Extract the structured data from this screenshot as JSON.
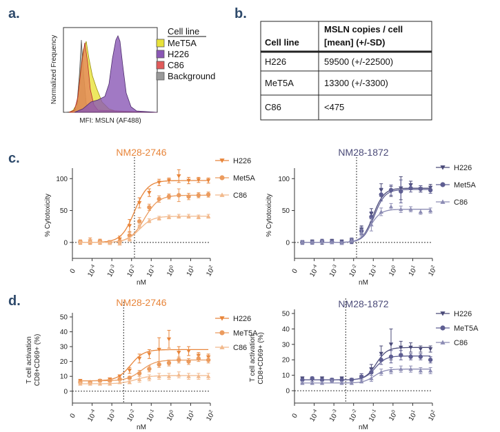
{
  "panel_labels": {
    "a": "a.",
    "b": "b.",
    "c": "c.",
    "d": "d."
  },
  "histogram": {
    "ylabel": "Normalized Frequency",
    "xlabel": "MFI: MSLN (AF488)",
    "legend_title": "Cell line",
    "legend": [
      {
        "name": "MeT5A",
        "color": "#e8e23a"
      },
      {
        "name": "H226",
        "color": "#8a57b5"
      },
      {
        "name": "C86",
        "color": "#e05a5a"
      },
      {
        "name": "Background",
        "color": "#9a9a9a"
      }
    ]
  },
  "table": {
    "headers": [
      "Cell line",
      "MSLN copies / cell",
      "[mean] (+/-SD)"
    ],
    "rows": [
      [
        "H226",
        "59500 (+/-22500)"
      ],
      [
        "MeT5A",
        "13300 (+/-3300)"
      ],
      [
        "C86",
        "<475"
      ]
    ]
  },
  "x_ticks": [
    {
      "base": "0",
      "exp": ""
    },
    {
      "base": "10",
      "exp": "-4"
    },
    {
      "base": "10",
      "exp": "-3"
    },
    {
      "base": "10",
      "exp": "-2"
    },
    {
      "base": "10",
      "exp": "-1"
    },
    {
      "base": "10",
      "exp": "0"
    },
    {
      "base": "10",
      "exp": "1"
    },
    {
      "base": "10",
      "exp": "2"
    }
  ],
  "chart_data": [
    {
      "type": "scatter",
      "title": "NM28-2746",
      "title_color": "#e8853a",
      "panel": "c",
      "xlabel": "nM",
      "ylabel": "% Cytotoxicity",
      "ylim": [
        -25,
        110
      ],
      "yticks": [
        0,
        50,
        100
      ],
      "xlog": [
        -5,
        2
      ],
      "vline_log": -1.85,
      "series": [
        {
          "name": "H226",
          "marker": "triangle-down",
          "color": "#e8853a",
          "bottom": 0,
          "top": 97,
          "log_ec50": -1.85,
          "hill": 1.3,
          "x": [
            -4.6,
            -4.1,
            -3.6,
            -3.1,
            -2.6,
            -2.1,
            -1.6,
            -1.1,
            -0.6,
            -0.1,
            0.4,
            0.9,
            1.4,
            1.9
          ],
          "values": [
            0,
            2,
            1,
            0,
            5,
            26,
            62,
            78,
            94,
            97,
            104,
            97,
            98,
            97
          ],
          "err": [
            3,
            5,
            4,
            3,
            5,
            10,
            8,
            6,
            5,
            4,
            10,
            5,
            4,
            4
          ]
        },
        {
          "name": "Met5A",
          "marker": "circle",
          "color": "#eb9b5e",
          "bottom": 0,
          "top": 74,
          "log_ec50": -1.35,
          "hill": 1.2,
          "x": [
            -4.6,
            -4.1,
            -3.6,
            -3.1,
            -2.6,
            -2.1,
            -1.6,
            -1.1,
            -0.6,
            -0.1,
            0.4,
            0.9,
            1.4,
            1.9
          ],
          "values": [
            1,
            0,
            2,
            0,
            1,
            11,
            33,
            55,
            68,
            72,
            74,
            72,
            74,
            75
          ],
          "err": [
            3,
            3,
            3,
            3,
            3,
            6,
            6,
            5,
            5,
            4,
            10,
            5,
            4,
            4
          ]
        },
        {
          "name": "C86",
          "marker": "triangle",
          "color": "#f2b98c",
          "bottom": 0,
          "top": 41,
          "log_ec50": -1.6,
          "hill": 1.3,
          "x": [
            -4.6,
            -4.1,
            -3.6,
            -3.1,
            -2.6,
            -2.1,
            -1.6,
            -1.1,
            -0.6,
            -0.1,
            0.4,
            0.9,
            1.4,
            1.9
          ],
          "values": [
            0,
            1,
            0,
            -1,
            -2,
            5,
            26,
            34,
            38,
            40,
            41,
            41,
            40,
            41
          ],
          "err": [
            2,
            2,
            2,
            2,
            2,
            3,
            4,
            3,
            3,
            3,
            3,
            3,
            3,
            3
          ]
        }
      ]
    },
    {
      "type": "scatter",
      "title": "NM28-1872",
      "title_color": "#4a4a78",
      "panel": "c",
      "xlabel": "nM",
      "ylabel": "% Cytotoxicity",
      "ylim": [
        -25,
        110
      ],
      "yticks": [
        0,
        50,
        100
      ],
      "xlog": [
        -5,
        2
      ],
      "vline_log": -1.85,
      "series": [
        {
          "name": "H226",
          "marker": "triangle-down",
          "color": "#4a4a78",
          "bottom": 0,
          "top": 85,
          "log_ec50": -1.0,
          "hill": 1.6,
          "x": [
            -4.6,
            -4.1,
            -3.6,
            -3.1,
            -2.6,
            -2.1,
            -1.6,
            -1.1,
            -0.6,
            -0.1,
            0.4,
            0.9,
            1.4,
            1.9
          ],
          "values": [
            0,
            1,
            0,
            2,
            1,
            3,
            20,
            45,
            82,
            80,
            85,
            90,
            84,
            86
          ],
          "err": [
            3,
            3,
            3,
            3,
            3,
            4,
            6,
            8,
            10,
            8,
            18,
            6,
            5,
            5
          ]
        },
        {
          "name": "Met5A",
          "marker": "circle",
          "color": "#5e5e92",
          "bottom": 0,
          "top": 83,
          "log_ec50": -0.95,
          "hill": 1.6,
          "x": [
            -4.6,
            -4.1,
            -3.6,
            -3.1,
            -2.6,
            -2.1,
            -1.6,
            -1.1,
            -0.6,
            -0.1,
            0.4,
            0.9,
            1.4,
            1.9
          ],
          "values": [
            0,
            0,
            2,
            1,
            0,
            2,
            18,
            40,
            75,
            82,
            80,
            85,
            84,
            82
          ],
          "err": [
            3,
            3,
            3,
            3,
            3,
            4,
            6,
            8,
            10,
            8,
            18,
            6,
            5,
            5
          ]
        },
        {
          "name": "C86",
          "marker": "triangle",
          "color": "#8c8cb4",
          "bottom": 0,
          "top": 52,
          "log_ec50": -1.15,
          "hill": 1.6,
          "x": [
            -4.6,
            -4.1,
            -3.6,
            -3.1,
            -2.6,
            -2.1,
            -1.6,
            -1.1,
            -0.6,
            -0.1,
            0.4,
            0.9,
            1.4,
            1.9
          ],
          "values": [
            0,
            0,
            1,
            0,
            -1,
            3,
            15,
            28,
            48,
            56,
            52,
            52,
            48,
            50
          ],
          "err": [
            2,
            2,
            2,
            2,
            2,
            3,
            5,
            10,
            6,
            5,
            5,
            4,
            4,
            4
          ]
        }
      ]
    },
    {
      "type": "scatter",
      "title": "NM28-2746",
      "title_color": "#e8853a",
      "panel": "d",
      "xlabel": "nM",
      "ylabel_lines": [
        "T cell activation",
        "CD8+CD69+ (%)"
      ],
      "ylim": [
        -8,
        50
      ],
      "yticks": [
        0,
        10,
        20,
        30,
        40,
        50
      ],
      "xlog": [
        -5,
        2
      ],
      "vline_log": -2.4,
      "series": [
        {
          "name": "H226",
          "marker": "triangle-down",
          "color": "#e8853a",
          "bottom": 7,
          "top": 28,
          "log_ec50": -2.05,
          "hill": 1.3,
          "x": [
            -4.6,
            -4.1,
            -3.6,
            -3.1,
            -2.6,
            -2.1,
            -1.6,
            -1.1,
            -0.6,
            -0.1,
            0.4,
            0.9,
            1.4,
            1.9
          ],
          "values": [
            7,
            6,
            7,
            8,
            10,
            14,
            22,
            25,
            28,
            35,
            26,
            27,
            24,
            23
          ],
          "err": [
            1,
            1,
            1,
            1,
            1,
            2,
            3,
            3,
            8,
            6,
            4,
            3,
            2,
            2
          ]
        },
        {
          "name": "MeT5A",
          "marker": "circle",
          "color": "#eb9b5e",
          "bottom": 7,
          "top": 21,
          "log_ec50": -1.5,
          "hill": 1.2,
          "x": [
            -4.6,
            -4.1,
            -3.6,
            -3.1,
            -2.6,
            -2.1,
            -1.6,
            -1.1,
            -0.6,
            -0.1,
            0.4,
            0.9,
            1.4,
            1.9
          ],
          "values": [
            6,
            6,
            7,
            7,
            8,
            9,
            12,
            15,
            18,
            19,
            21,
            20,
            22,
            21
          ],
          "err": [
            1,
            1,
            1,
            1,
            1,
            1,
            2,
            2,
            2,
            2,
            2,
            2,
            2,
            2
          ]
        },
        {
          "name": "C86",
          "marker": "triangle",
          "color": "#f2b98c",
          "bottom": 5,
          "top": 10.5,
          "log_ec50": -1.8,
          "hill": 1.2,
          "x": [
            -4.6,
            -4.1,
            -3.6,
            -3.1,
            -2.6,
            -2.1,
            -1.6,
            -1.1,
            -0.6,
            -0.1,
            0.4,
            0.9,
            1.4,
            1.9
          ],
          "values": [
            5,
            5,
            5,
            5,
            6,
            6,
            8,
            9,
            10,
            10,
            11,
            10,
            10,
            10
          ],
          "err": [
            1,
            1,
            1,
            1,
            1,
            1,
            2,
            2,
            2,
            2,
            2,
            2,
            2,
            2
          ]
        }
      ]
    },
    {
      "type": "scatter",
      "title": "NM28-1872",
      "title_color": "#4a4a78",
      "panel": "d",
      "xlabel": "nM",
      "ylabel_lines": [
        "T cell activation",
        "CD8+CD69+ (%)"
      ],
      "ylim": [
        -8,
        50
      ],
      "yticks": [
        0,
        10,
        20,
        30,
        40,
        50
      ],
      "xlog": [
        -5,
        2
      ],
      "vline_log": -2.4,
      "series": [
        {
          "name": "H226",
          "marker": "triangle-down",
          "color": "#4a4a78",
          "bottom": 7,
          "top": 28,
          "log_ec50": -0.85,
          "hill": 1.6,
          "x": [
            -4.6,
            -4.1,
            -3.6,
            -3.1,
            -2.6,
            -2.1,
            -1.6,
            -1.1,
            -0.6,
            -0.1,
            0.4,
            0.9,
            1.4,
            1.9
          ],
          "values": [
            8,
            7,
            8,
            7,
            8,
            7,
            9,
            14,
            24,
            30,
            28,
            28,
            27,
            27
          ],
          "err": [
            1,
            1,
            1,
            1,
            1,
            1,
            2,
            3,
            5,
            10,
            4,
            3,
            2,
            2
          ]
        },
        {
          "name": "MeT5A",
          "marker": "circle",
          "color": "#5e5e92",
          "bottom": 7,
          "top": 22.5,
          "log_ec50": -0.9,
          "hill": 1.6,
          "x": [
            -4.6,
            -4.1,
            -3.6,
            -3.1,
            -2.6,
            -2.1,
            -1.6,
            -1.1,
            -0.6,
            -0.1,
            0.4,
            0.9,
            1.4,
            1.9
          ],
          "values": [
            7,
            8,
            7,
            7,
            7,
            7,
            9,
            12,
            20,
            22,
            23,
            22,
            22,
            20
          ],
          "err": [
            1,
            1,
            1,
            1,
            1,
            1,
            2,
            2,
            3,
            4,
            3,
            2,
            2,
            2
          ]
        },
        {
          "name": "C86",
          "marker": "triangle",
          "color": "#8c8cb4",
          "bottom": 5,
          "top": 14,
          "log_ec50": -0.95,
          "hill": 1.6,
          "x": [
            -4.6,
            -4.1,
            -3.6,
            -3.1,
            -2.6,
            -2.1,
            -1.6,
            -1.1,
            -0.6,
            -0.1,
            0.4,
            0.9,
            1.4,
            1.9
          ],
          "values": [
            5,
            5,
            5,
            6,
            5,
            5,
            6,
            8,
            12,
            13,
            14,
            14,
            13,
            13
          ],
          "err": [
            1,
            1,
            1,
            1,
            1,
            1,
            1,
            2,
            2,
            2,
            2,
            2,
            2,
            2
          ]
        }
      ]
    }
  ]
}
